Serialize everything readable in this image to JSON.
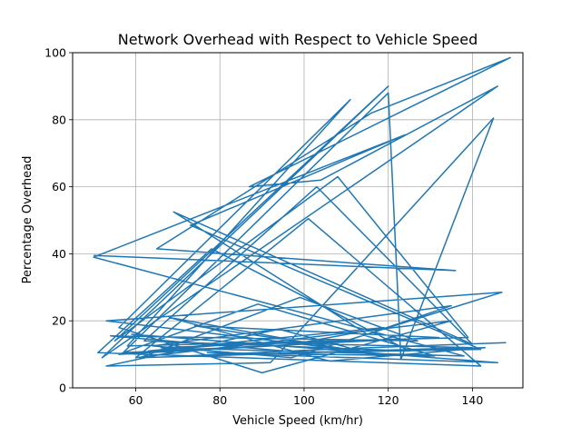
{
  "chart_data": {
    "type": "line",
    "title": "Network Overhead with Respect to Vehicle Speed",
    "xlabel": "Vehicle Speed (km/hr)",
    "ylabel": "Percentage Overhead",
    "xlim": [
      45,
      152
    ],
    "ylim": [
      0,
      100
    ],
    "xticks": [
      60,
      80,
      100,
      120,
      140
    ],
    "yticks": [
      0,
      20,
      40,
      60,
      80,
      100
    ],
    "grid": true,
    "series": [
      {
        "color": "#1f77b4",
        "x": [
          50,
          136,
          65,
          116,
          149,
          87,
          104,
          146,
          52,
          120,
          55,
          108,
          139,
          58,
          111,
          56,
          90,
          135,
          60,
          101,
          142,
          51,
          78,
          125,
          62,
          103,
          140,
          69,
          115,
          135,
          64,
          97,
          147,
          53,
          113,
          74,
          132,
          57,
          120,
          123,
          145,
          92,
          53,
          94,
          118,
          68,
          106,
          143,
          61,
          99,
          127,
          54,
          100,
          142,
          73,
          124,
          50,
          138,
          66,
          121,
          56,
          89,
          131,
          77,
          146,
          59,
          95,
          119,
          63,
          88,
          140,
          72,
          105,
          148
        ],
        "y": [
          39.5,
          35,
          41.5,
          82,
          98.5,
          60,
          62,
          90,
          9,
          90,
          14,
          63,
          15,
          12.5,
          86,
          18,
          4.5,
          20,
          9,
          50.5,
          6.5,
          10.5,
          41.5,
          11,
          14,
          60,
          13,
          52.5,
          16,
          24.5,
          12.5,
          9,
          28.5,
          20,
          11,
          18.5,
          15,
          10.5,
          88,
          8.5,
          80.5,
          7.5,
          6.5,
          17.5,
          9.5,
          21,
          8,
          12,
          9,
          27,
          14,
          15.5,
          10.5,
          11.5,
          48.5,
          75.5,
          39,
          9.5,
          12,
          14.5,
          10,
          25,
          9.5,
          10.5,
          7.5,
          16,
          12.5,
          18,
          11,
          13.5,
          12,
          9.5,
          11.5,
          13.5
        ]
      }
    ]
  }
}
